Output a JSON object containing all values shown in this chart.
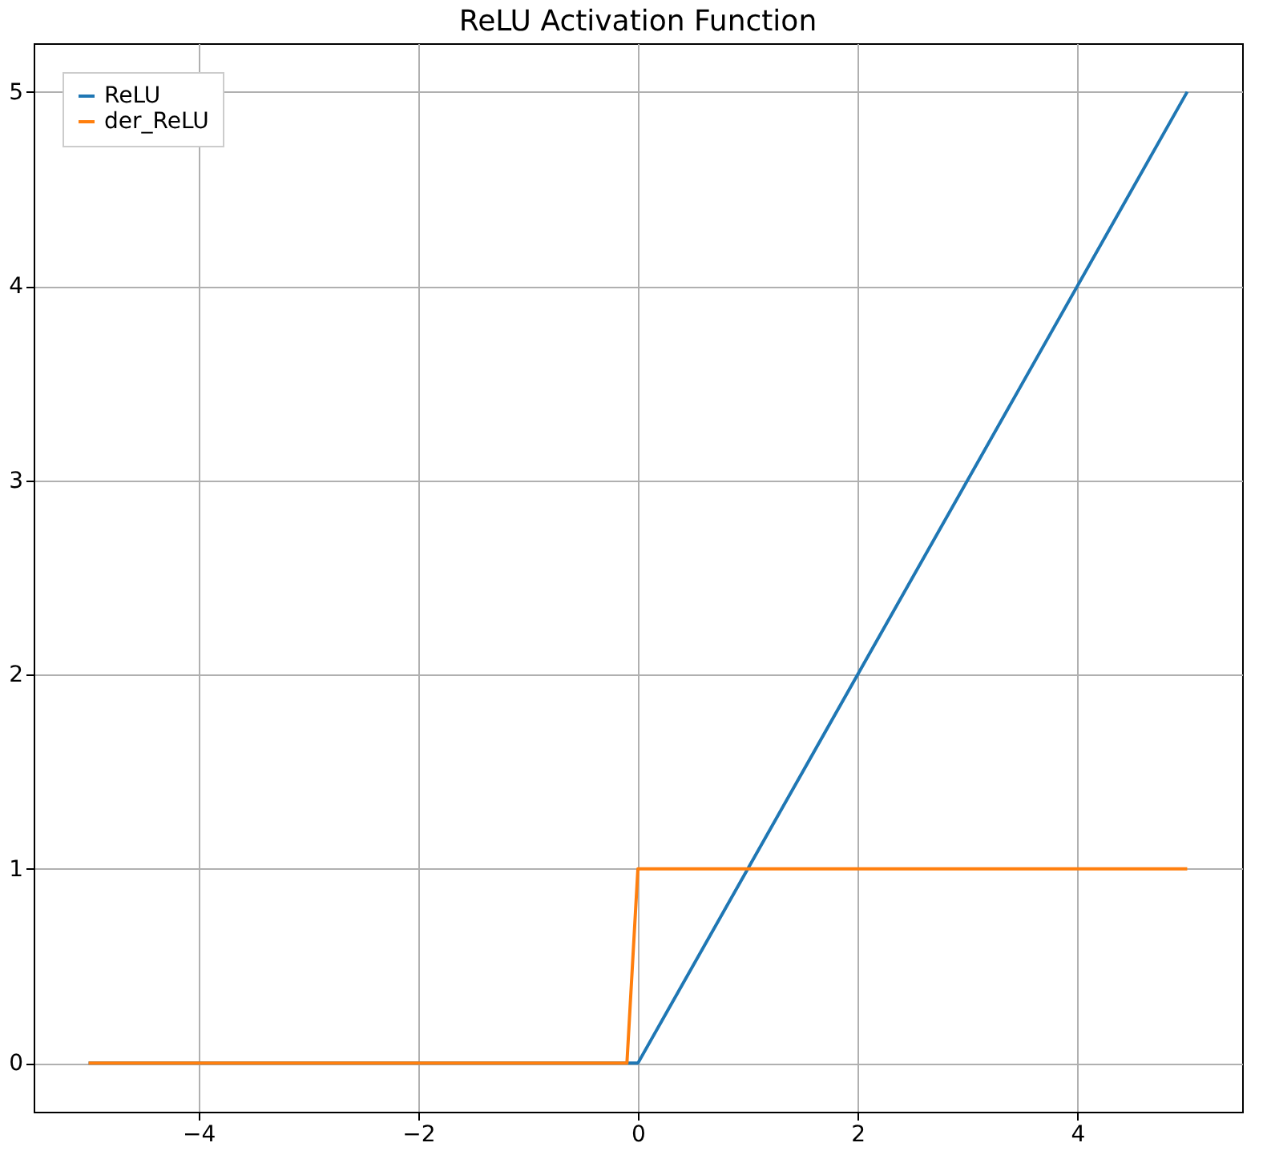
{
  "chart_data": {
    "type": "line",
    "title": "ReLU Activation Function",
    "series": [
      {
        "name": "ReLU",
        "color": "#1f77b4",
        "x": [
          -5,
          0,
          5
        ],
        "values": [
          0,
          0,
          5
        ]
      },
      {
        "name": "der_ReLU",
        "color": "#ff7f0e",
        "x": [
          -5,
          -0.1,
          0,
          5
        ],
        "values": [
          0,
          0,
          1,
          1
        ]
      }
    ],
    "xlim": [
      -5.5,
      5.5
    ],
    "xticks": [
      -4,
      -2,
      0,
      2,
      4
    ],
    "ylim": [
      -0.25,
      5.25
    ],
    "yticks": [
      0,
      1,
      2,
      3,
      4,
      5
    ],
    "grid": true,
    "legend": "top left",
    "marker": "none",
    "line_style": "solid"
  }
}
